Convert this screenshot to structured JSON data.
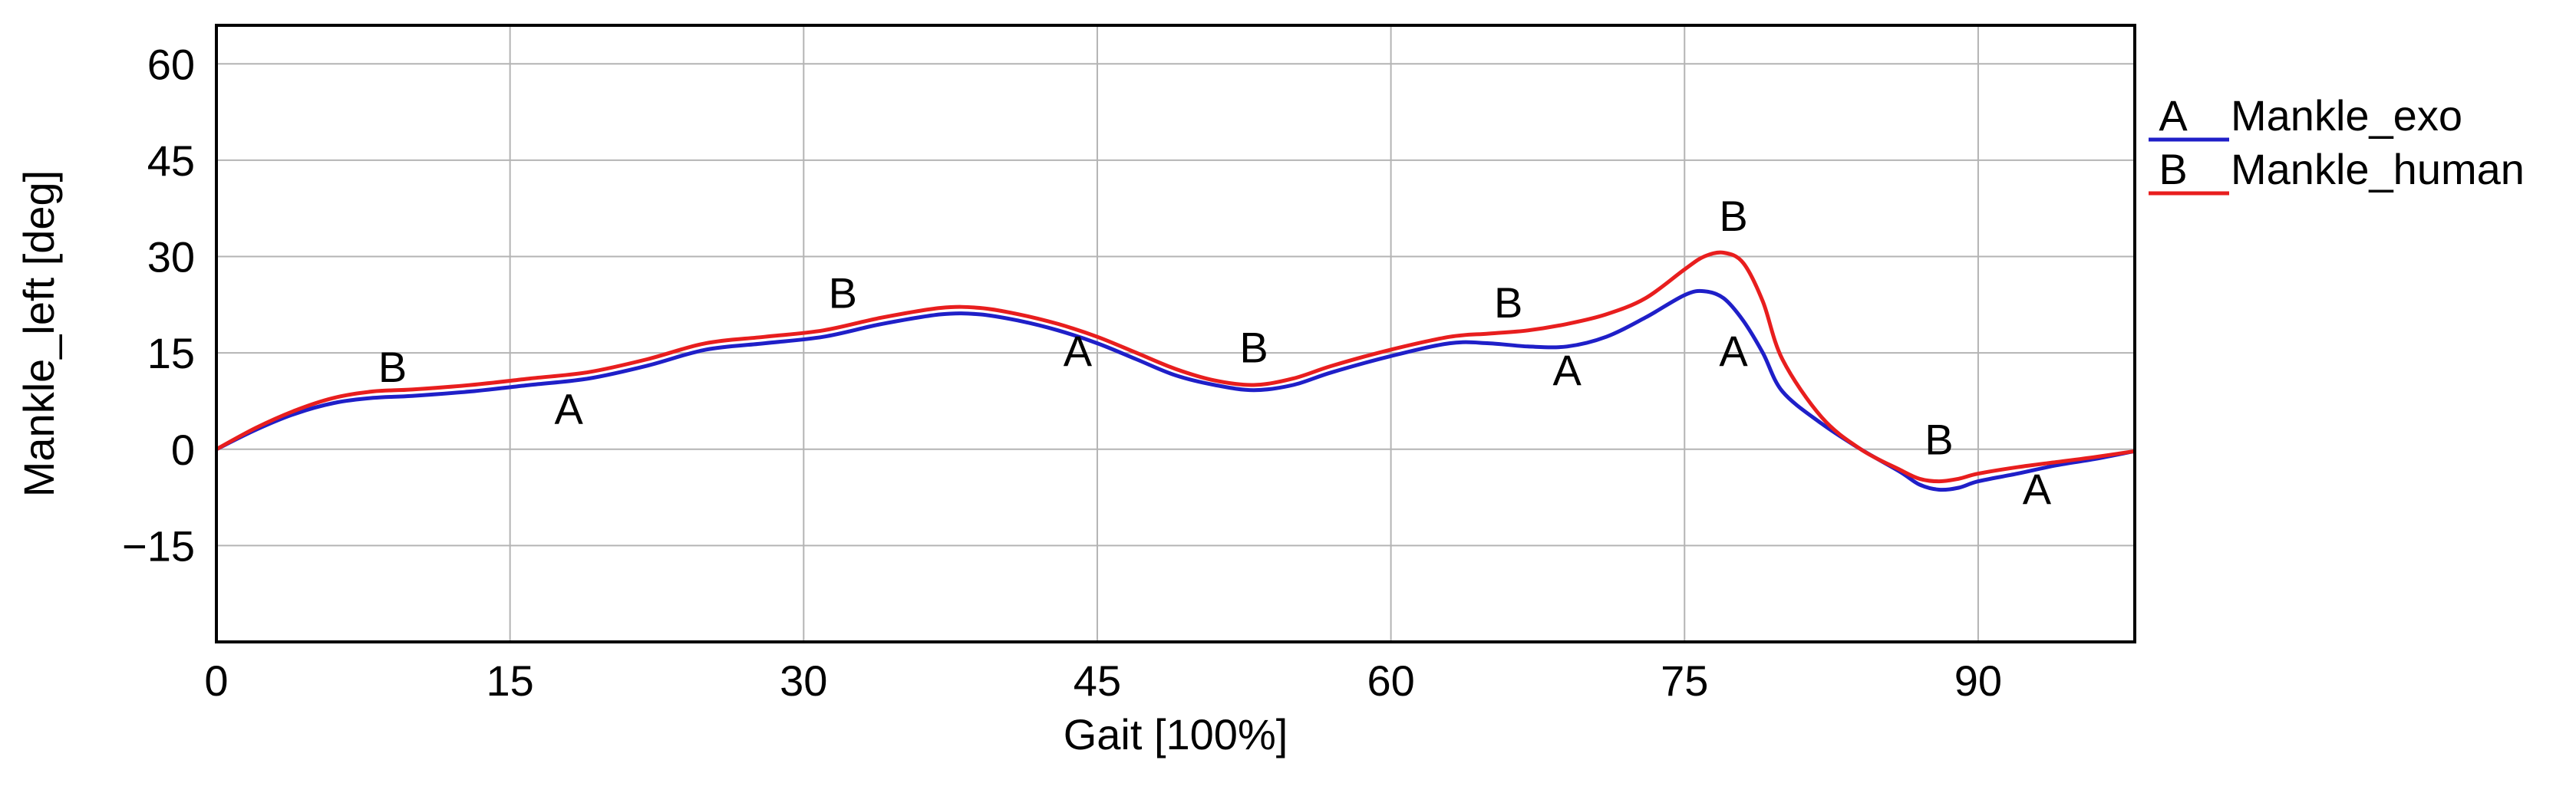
{
  "chart_data": {
    "type": "line",
    "xlabel": "Gait [100%]",
    "ylabel": "Mankle_left [deg]",
    "xlim": [
      0,
      98
    ],
    "ylim": [
      -30,
      66
    ],
    "xticks": [
      0,
      15,
      30,
      45,
      60,
      75,
      90
    ],
    "yticks": [
      -15,
      0,
      15,
      30,
      45,
      60
    ],
    "ytick_labels": [
      "−15",
      "0",
      "15",
      "30",
      "45",
      "60"
    ],
    "grid": true,
    "legend_position": "right",
    "series": [
      {
        "name": "Mankle_exo",
        "marker": "A",
        "color": "#1f1fc8",
        "x": [
          0,
          2,
          4,
          6,
          8,
          10,
          13,
          16,
          19,
          22,
          25,
          28,
          31,
          34,
          37,
          39,
          41,
          43,
          45,
          47,
          49,
          51,
          53,
          55,
          57,
          60,
          63,
          65,
          67,
          69,
          71,
          73,
          75,
          76,
          77,
          78,
          79,
          80,
          82,
          84,
          86,
          87,
          88,
          89,
          90,
          92,
          94,
          96,
          98
        ],
        "y": [
          0,
          3,
          5.5,
          7.2,
          8,
          8.3,
          9,
          10,
          11,
          13,
          15.5,
          16.5,
          17.5,
          19.5,
          21,
          21,
          20,
          18.5,
          16.5,
          14,
          11.5,
          10,
          9.2,
          10,
          12,
          14.5,
          16.5,
          16.5,
          16,
          16,
          17.5,
          20.5,
          24,
          24.6,
          23.5,
          20,
          15,
          9,
          4,
          0,
          -3.5,
          -5.5,
          -6.3,
          -6,
          -5,
          -3.8,
          -2.5,
          -1.5,
          -0.3
        ],
        "labels": [
          {
            "x": 18,
            "y": 4
          },
          {
            "x": 44,
            "y": 13
          },
          {
            "x": 69,
            "y": 10
          },
          {
            "x": 77.5,
            "y": 13
          },
          {
            "x": 93,
            "y": -8.5
          }
        ]
      },
      {
        "name": "Mankle_human",
        "marker": "B",
        "color": "#e81e1e",
        "x": [
          0,
          2,
          4,
          6,
          8,
          10,
          13,
          16,
          19,
          22,
          25,
          28,
          31,
          34,
          37,
          39,
          41,
          43,
          45,
          47,
          49,
          51,
          53,
          55,
          57,
          60,
          63,
          65,
          67,
          69,
          71,
          73,
          75,
          76,
          77,
          78,
          79,
          80,
          82,
          84,
          86,
          87,
          88,
          89,
          90,
          92,
          94,
          96,
          98
        ],
        "y": [
          0,
          3.3,
          6,
          8,
          9,
          9.3,
          10,
          11,
          12,
          14,
          16.5,
          17.5,
          18.5,
          20.5,
          22,
          22,
          21,
          19.5,
          17.5,
          15,
          12.5,
          10.7,
          10,
          11,
          13,
          15.5,
          17.5,
          18,
          18.5,
          19.5,
          21,
          23.5,
          28,
          30,
          30.6,
          29,
          23,
          14,
          5,
          0,
          -3.2,
          -4.6,
          -5,
          -4.6,
          -3.8,
          -2.8,
          -2,
          -1.2,
          -0.3
        ],
        "labels": [
          {
            "x": 9,
            "y": 10.5
          },
          {
            "x": 32,
            "y": 22
          },
          {
            "x": 53,
            "y": 13.5
          },
          {
            "x": 66,
            "y": 20.5
          },
          {
            "x": 77.5,
            "y": 34
          },
          {
            "x": 88,
            "y": -0.8
          }
        ]
      }
    ]
  }
}
